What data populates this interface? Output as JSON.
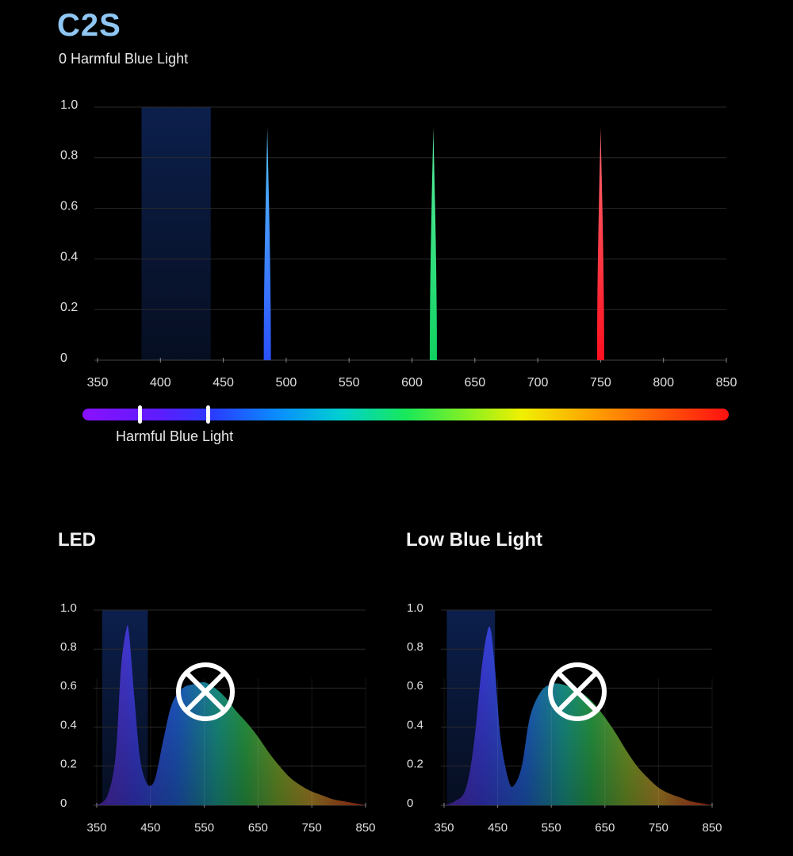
{
  "header": {
    "title": "C2S",
    "subtitle": "0 Harmful Blue Light"
  },
  "spectrum_bar": {
    "label": "Harmful Blue Light"
  },
  "sections": {
    "left_title": "LED",
    "right_title": "Low Blue Light"
  },
  "colors": {
    "title": "#8fc6f3",
    "blue_peak": "#2f6bff",
    "green_peak": "#1fe07a",
    "red_peak": "#ff2a3a",
    "harmful_band": "#0b1a3d"
  },
  "chart_data": [
    {
      "type": "line",
      "x_ticks": [
        350,
        400,
        450,
        500,
        550,
        600,
        650,
        700,
        750,
        800,
        850
      ],
      "y_ticks": [
        "0",
        "0.2",
        "0.4",
        "0.6",
        "0.8",
        "1.0"
      ],
      "xlim": [
        350,
        850
      ],
      "ylim": [
        0,
        1.0
      ],
      "grid": true,
      "highlight_band": [
        385,
        440
      ],
      "series": [
        {
          "peak_x": 485,
          "peak_y": 0.92,
          "color": "blue"
        },
        {
          "peak_x": 617,
          "peak_y": 0.92,
          "color": "green"
        },
        {
          "peak_x": 750,
          "peak_y": 0.92,
          "color": "red"
        }
      ]
    },
    {
      "type": "area",
      "x_ticks": [
        350,
        450,
        550,
        650,
        750,
        850
      ],
      "y_ticks": [
        "0",
        "0.2",
        "0.4",
        "0.6",
        "0.8",
        "1.0"
      ],
      "xlim": [
        350,
        850
      ],
      "ylim": [
        0,
        1.0
      ],
      "grid": true,
      "highlight_band": [
        360,
        445
      ],
      "x": [
        350,
        370,
        385,
        395,
        405,
        410,
        420,
        430,
        440,
        450,
        460,
        475,
        490,
        510,
        530,
        550,
        570,
        590,
        610,
        630,
        650,
        670,
        690,
        710,
        730,
        750,
        770,
        790,
        810,
        830,
        850
      ],
      "values": [
        0.0,
        0.05,
        0.25,
        0.7,
        0.9,
        0.88,
        0.55,
        0.25,
        0.13,
        0.1,
        0.15,
        0.35,
        0.52,
        0.6,
        0.62,
        0.63,
        0.6,
        0.55,
        0.48,
        0.42,
        0.35,
        0.27,
        0.2,
        0.14,
        0.1,
        0.07,
        0.05,
        0.03,
        0.02,
        0.01,
        0.0
      ]
    },
    {
      "type": "area",
      "x_ticks": [
        350,
        450,
        550,
        650,
        750,
        850
      ],
      "y_ticks": [
        "0",
        "0.2",
        "0.4",
        "0.6",
        "0.8",
        "1.0"
      ],
      "xlim": [
        350,
        850
      ],
      "ylim": [
        0,
        1.0
      ],
      "grid": true,
      "highlight_band": [
        355,
        445
      ],
      "x": [
        350,
        370,
        390,
        405,
        420,
        430,
        437,
        445,
        455,
        470,
        480,
        495,
        510,
        530,
        550,
        570,
        590,
        610,
        630,
        650,
        670,
        690,
        710,
        730,
        750,
        770,
        790,
        810,
        830,
        850
      ],
      "values": [
        0.0,
        0.02,
        0.08,
        0.3,
        0.7,
        0.88,
        0.9,
        0.7,
        0.35,
        0.13,
        0.1,
        0.2,
        0.45,
        0.58,
        0.62,
        0.62,
        0.6,
        0.57,
        0.52,
        0.45,
        0.37,
        0.28,
        0.2,
        0.14,
        0.09,
        0.06,
        0.04,
        0.02,
        0.01,
        0.0
      ]
    }
  ]
}
